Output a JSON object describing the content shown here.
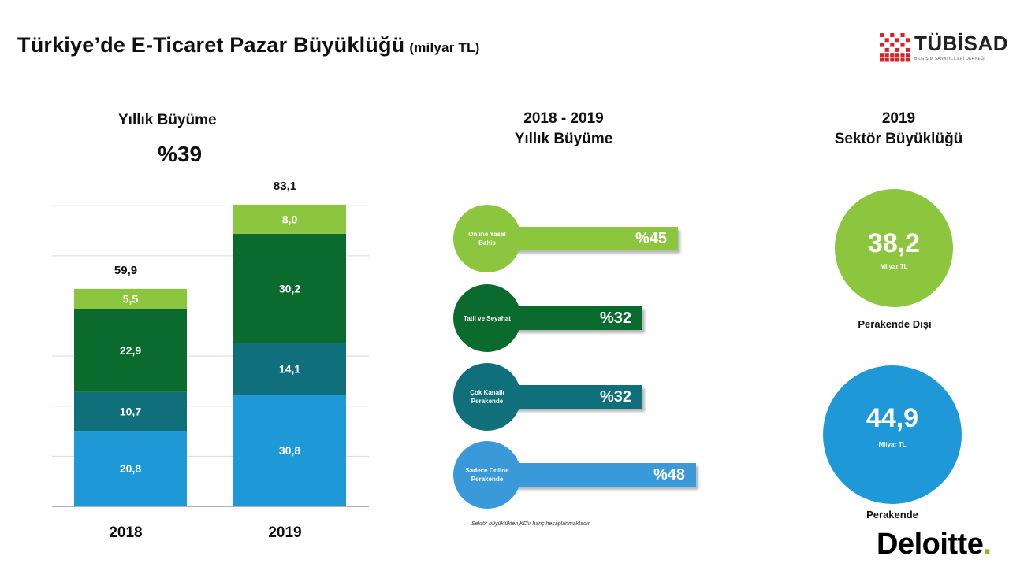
{
  "title": "Türkiye’de E-Ticaret Pazar Büyüklüğü",
  "title_unit": "(milyar TL)",
  "logo": {
    "name": "TÜBİSAD",
    "subtitle": "BİLGİSİM SANAYİCİLERİ DERNEĞİ"
  },
  "colors": {
    "light_green": "#8cc63f",
    "dark_green": "#0b6b2e",
    "teal": "#0f6f7a",
    "blue": "#1e98d6",
    "mid_blue": "#3a9ad9",
    "grid": "#d9d9d9",
    "logo_red": "#d8232a"
  },
  "left_panel": {
    "heading": "Yıllık Büyüme",
    "growth": "%39"
  },
  "chart_data": {
    "type": "bar",
    "stacked": true,
    "categories": [
      "2018",
      "2019"
    ],
    "totals": [
      "59,9",
      "83,1"
    ],
    "total_values": [
      59.9,
      83.1
    ],
    "series": [
      {
        "values": [
          20.8,
          30.8
        ],
        "labels": [
          "20,8",
          "30,8"
        ],
        "color": "#1e98d6"
      },
      {
        "values": [
          10.7,
          14.1
        ],
        "labels": [
          "10,7",
          "14,1"
        ],
        "color": "#0f6f7a"
      },
      {
        "values": [
          22.9,
          30.2
        ],
        "labels": [
          "22,9",
          "30,2"
        ],
        "color": "#0b6b2e"
      },
      {
        "values": [
          5.5,
          8.0
        ],
        "labels": [
          "5,5",
          "8,0"
        ],
        "color": "#8cc63f"
      }
    ],
    "ylim": [
      0,
      90
    ],
    "grid": true,
    "legend": "none"
  },
  "middle_panel": {
    "heading_line1": "2018 - 2019",
    "heading_line2": "Yıllık Büyüme",
    "items": [
      {
        "label": "Online Yasal Bahis",
        "value": "%45",
        "color": "#8cc63f"
      },
      {
        "label": "Tatil ve Seyahat",
        "value": "%32",
        "color": "#0b6b2e"
      },
      {
        "label": "Çok Kanallı Perakende",
        "value": "%32",
        "color": "#0f6f7a"
      },
      {
        "label": "Sadece Online Perakende",
        "value": "%48",
        "color": "#3a9ad9"
      }
    ],
    "footnote": "Sektör büyüklükleri KDV hariç hesaplanmaktadır"
  },
  "right_panel": {
    "heading_line1": "2019",
    "heading_line2": "Sektör Büyüklüğü",
    "circles": [
      {
        "value": "38,2",
        "unit": "Milyar TL",
        "label": "Perakende Dışı",
        "color": "#8cc63f"
      },
      {
        "value": "44,9",
        "unit": "Milyar TL",
        "label": "Perakende",
        "color": "#1e98d6"
      }
    ]
  },
  "footer_logo": "Deloitte",
  "footer_logo_dot": "."
}
